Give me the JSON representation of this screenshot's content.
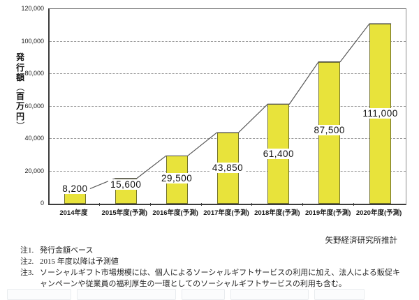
{
  "chart_data": {
    "type": "bar",
    "title": "",
    "ylabel": "発行額（百万円）",
    "ylabel_chars": [
      "発",
      "行",
      "額",
      "（",
      "百",
      "万",
      "円",
      "）"
    ],
    "categories": [
      "2014年度",
      "2015年度(予測)",
      "2016年度(予測)",
      "2017年度(予測)",
      "2018年度(予測)",
      "2019年度(予測)",
      "2020年度(予測)"
    ],
    "values": [
      8200,
      15600,
      29500,
      43850,
      61400,
      87500,
      111000
    ],
    "value_labels": [
      "8,200",
      "15,600",
      "29,500",
      "43,850",
      "61,400",
      "87,500",
      "111,000"
    ],
    "ylim": [
      0,
      120000
    ],
    "ytick_step": 20000,
    "ytick_labels": [
      "0",
      "20,000",
      "40,000",
      "60,000",
      "80,000",
      "100,000",
      "120,000"
    ],
    "grid": "horizontal-dashed",
    "legend": "none",
    "overlay_line": "connects tops of bars",
    "colors": {
      "bar_fill": "#e8e33b",
      "bar_border": "#74742c",
      "line": "#555555",
      "grid": "#9a9a9a",
      "axis": "#3c3c3c"
    }
  },
  "source": "矢野経済研究所推計",
  "notes": [
    {
      "label": "注1.",
      "text": "発行金額ベース"
    },
    {
      "label": "注2.",
      "text": "2015 年度以降は予測値"
    },
    {
      "label": "注3.",
      "text": "ソーシャルギフト市場規模には、個人によるソーシャルギフトサービスの利用に加え、法人による販促キャンペーンや従業員の福利厚生の一環としてのソーシャルギフトサービスの利用も含む。"
    }
  ]
}
